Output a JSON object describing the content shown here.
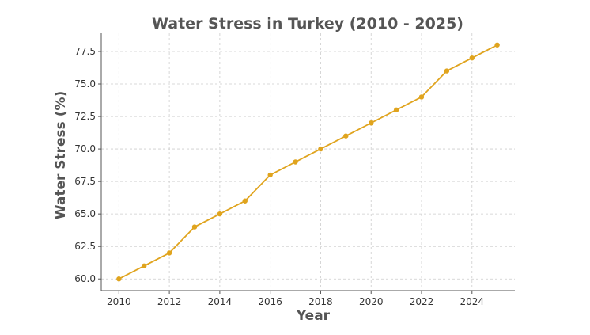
{
  "chart_data": {
    "type": "line",
    "title": "Water Stress in Turkey (2010 - 2025)",
    "xlabel": "Year",
    "ylabel": "Water Stress (%)",
    "x": [
      2010,
      2011,
      2012,
      2013,
      2014,
      2015,
      2016,
      2017,
      2018,
      2019,
      2020,
      2021,
      2022,
      2023,
      2024,
      2025
    ],
    "series": [
      {
        "values": [
          60,
          61,
          62,
          64,
          65,
          66,
          68,
          69,
          70,
          71,
          72,
          73,
          74,
          76,
          77,
          78
        ],
        "color": "#E0A41E"
      }
    ],
    "xticks": [
      "2010",
      "2012",
      "2014",
      "2016",
      "2018",
      "2020",
      "2022",
      "2024"
    ],
    "yticks": [
      "60.0",
      "62.5",
      "65.0",
      "67.5",
      "70.0",
      "72.5",
      "75.0",
      "77.5"
    ],
    "xlim": [
      2009.3,
      2025.7
    ],
    "ylim": [
      59.1,
      78.9
    ],
    "grid": true,
    "grid_style": "dashed",
    "marker": "circle"
  }
}
